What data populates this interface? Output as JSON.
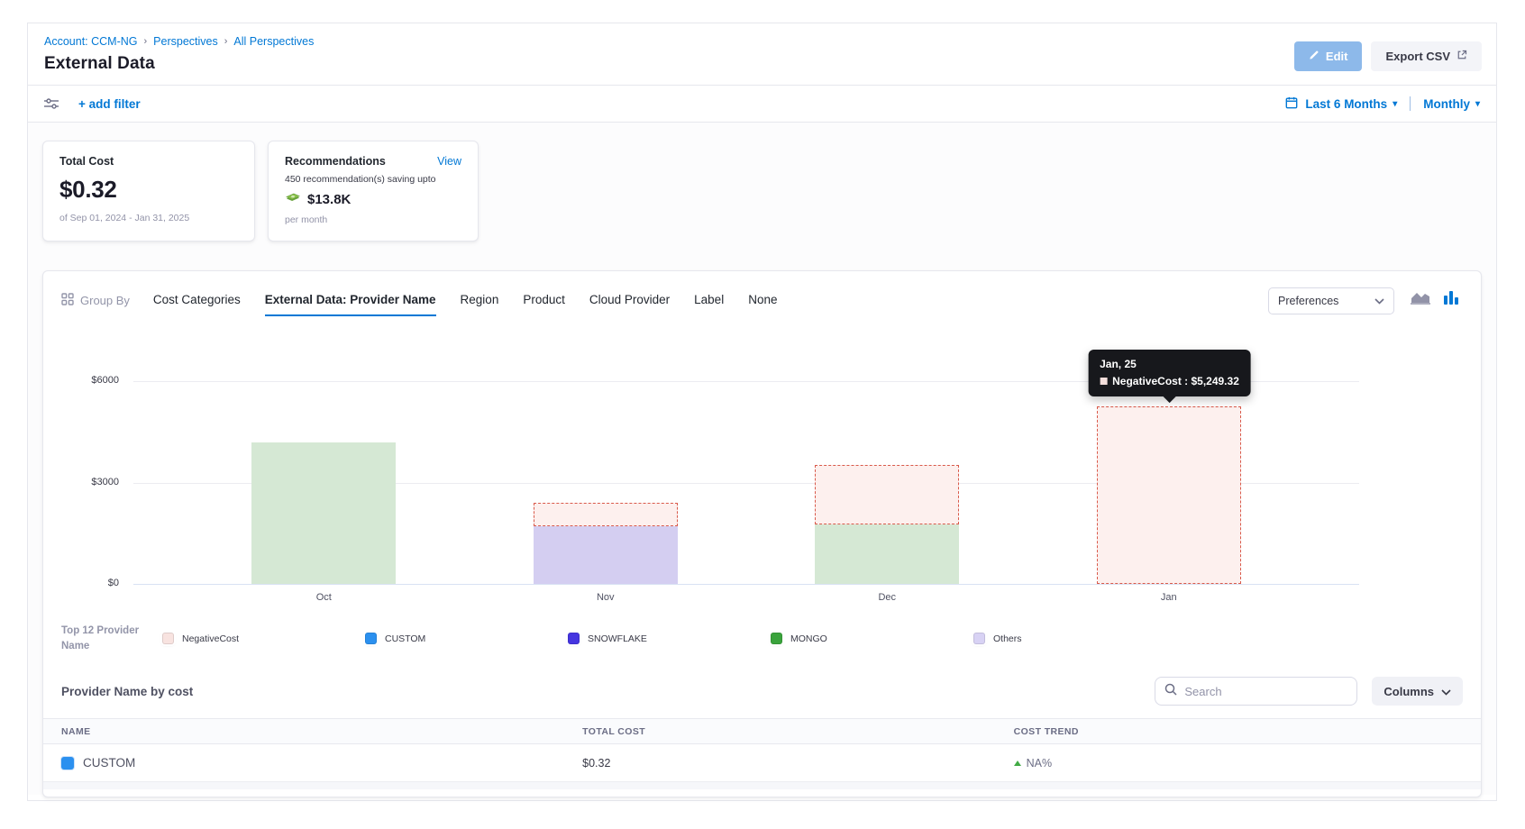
{
  "header": {
    "breadcrumb": [
      "Account: CCM-NG",
      "Perspectives",
      "All Perspectives"
    ],
    "title": "External Data",
    "edit_label": "Edit",
    "export_label": "Export CSV"
  },
  "filter_bar": {
    "add_filter_label": "+ add filter",
    "time_range_label": "Last 6 Months",
    "granularity_label": "Monthly"
  },
  "summary": {
    "total_cost": {
      "title": "Total Cost",
      "value": "$0.32",
      "period": "of Sep 01, 2024 - Jan 31, 2025"
    },
    "recommendations": {
      "title": "Recommendations",
      "view_label": "View",
      "line1": "450 recommendation(s) saving upto",
      "amount": "$13.8K",
      "line2": "per month"
    }
  },
  "group_by": {
    "label": "Group By",
    "tabs": [
      {
        "label": "Cost Categories",
        "active": false
      },
      {
        "label": "External Data: Provider Name",
        "active": true
      },
      {
        "label": "Region",
        "active": false
      },
      {
        "label": "Product",
        "active": false
      },
      {
        "label": "Cloud Provider",
        "active": false
      },
      {
        "label": "Label",
        "active": false
      },
      {
        "label": "None",
        "active": false
      }
    ],
    "preferences_label": "Preferences"
  },
  "chart_data": {
    "type": "bar",
    "stacked": true,
    "categories": [
      "Oct",
      "Nov",
      "Dec",
      "Jan"
    ],
    "ylim": [
      0,
      6000
    ],
    "y_ticks": [
      {
        "label": "$0",
        "value": 0
      },
      {
        "label": "$3000",
        "value": 3000
      },
      {
        "label": "$6000",
        "value": 6000
      }
    ],
    "series": [
      {
        "name": "MONGO",
        "values": [
          4180,
          0,
          1750,
          0
        ],
        "fill": "#d5e8d4",
        "dashed": false
      },
      {
        "name": "SNOWFLAKE",
        "values": [
          0,
          1700,
          0,
          0
        ],
        "fill": "#d4cef1",
        "dashed": false
      },
      {
        "name": "NegativeCost",
        "values": [
          0,
          710,
          1760,
          5249.32
        ],
        "fill": "#fdf0ee",
        "border": "#d95a4b",
        "dashed": true
      }
    ],
    "tooltip": {
      "title": "Jan, 25",
      "series": "NegativeCost",
      "value": "$5,249.32",
      "category_index": 3
    },
    "legend_title": "Top 12 Provider Name",
    "legend": [
      {
        "label": "NegativeCost",
        "color": "#f8e3e0"
      },
      {
        "label": "CUSTOM",
        "color": "#2b90ef"
      },
      {
        "label": "SNOWFLAKE",
        "color": "#4535e0"
      },
      {
        "label": "MONGO",
        "color": "#3aa33c"
      },
      {
        "label": "Others",
        "color": "#d8d2f4"
      }
    ],
    "grid": true,
    "legend_position": "bottom"
  },
  "table": {
    "title": "Provider Name by cost",
    "search_placeholder": "Search",
    "columns_label": "Columns",
    "headers": [
      "NAME",
      "TOTAL COST",
      "COST TREND"
    ],
    "rows": [
      {
        "name": "CUSTOM",
        "swatch_color": "#2b90ef",
        "total_cost": "$0.32",
        "trend": "NA%",
        "trend_dir": "up"
      }
    ]
  }
}
